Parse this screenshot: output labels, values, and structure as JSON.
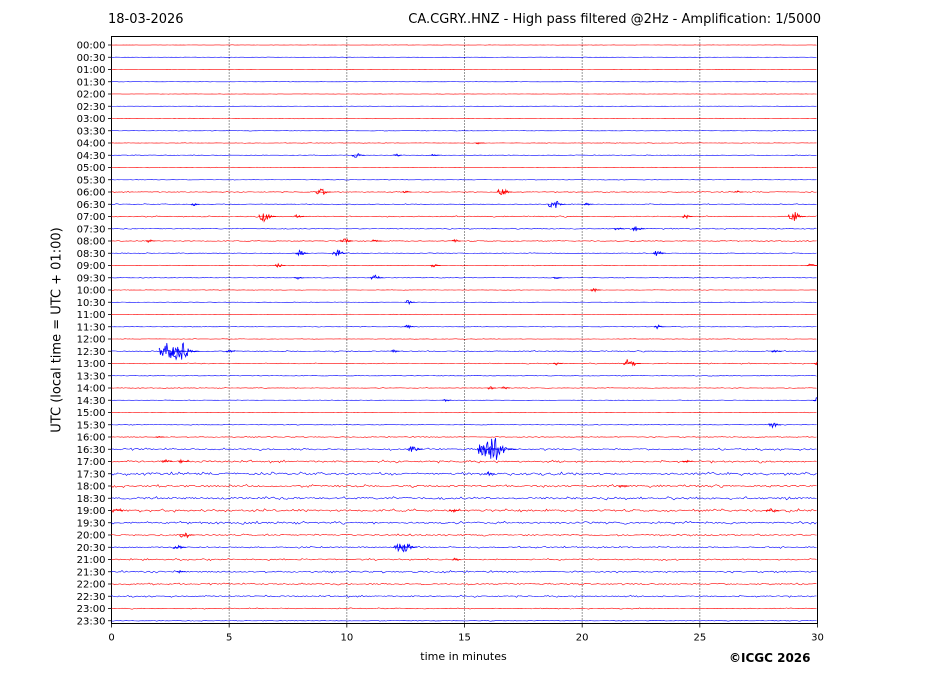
{
  "header": {
    "date": "18-03-2026",
    "title": "CA.CGRY..HNZ - High pass filtered @2Hz - Amplification: 1/5000"
  },
  "footer": {
    "copyright": "©ICGC 2026"
  },
  "chart_data": {
    "type": "line",
    "title": "CA.CGRY..HNZ - High pass filtered @2Hz - Amplification: 1/5000",
    "xlabel": "time in minutes",
    "ylabel": "UTC (local time = UTC + 01:00)",
    "xlim": [
      0,
      30
    ],
    "x_ticks": [
      0,
      5,
      10,
      15,
      20,
      25,
      30
    ],
    "x_tick_labels": [
      "0",
      "5",
      "10",
      "15",
      "20",
      "25",
      "30"
    ],
    "grid": "vertical dotted lines at x = 5, 10, 15, 20, 25",
    "trace_colors": [
      "#ff0000",
      "#0000ff"
    ],
    "rows": [
      "00:00",
      "00:30",
      "01:00",
      "01:30",
      "02:00",
      "02:30",
      "03:00",
      "03:30",
      "04:00",
      "04:30",
      "05:00",
      "05:30",
      "06:00",
      "06:30",
      "07:00",
      "07:30",
      "08:00",
      "08:30",
      "09:00",
      "09:30",
      "10:00",
      "10:30",
      "11:00",
      "11:30",
      "12:00",
      "12:30",
      "13:00",
      "13:30",
      "14:00",
      "14:30",
      "15:00",
      "15:30",
      "16:00",
      "16:30",
      "17:00",
      "17:30",
      "18:00",
      "18:30",
      "19:00",
      "19:30",
      "20:00",
      "20:30",
      "21:00",
      "21:30",
      "22:00",
      "22:30",
      "23:00",
      "23:30"
    ],
    "noise_level": [
      0.1,
      0.1,
      0.1,
      0.1,
      0.1,
      0.1,
      0.15,
      0.15,
      0.15,
      0.2,
      0.15,
      0.15,
      0.3,
      0.25,
      0.35,
      0.3,
      0.3,
      0.25,
      0.2,
      0.2,
      0.15,
      0.15,
      0.15,
      0.15,
      0.15,
      0.35,
      0.3,
      0.2,
      0.2,
      0.15,
      0.15,
      0.2,
      0.3,
      0.6,
      0.7,
      0.8,
      0.7,
      0.8,
      0.8,
      0.7,
      0.5,
      0.5,
      0.5,
      0.6,
      0.5,
      0.5,
      0.3,
      0.2
    ],
    "events": [
      {
        "row": "04:00",
        "minute": 15.6,
        "amplitude": 1.2
      },
      {
        "row": "04:30",
        "minute": 10.4,
        "amplitude": 3
      },
      {
        "row": "04:30",
        "minute": 12.1,
        "amplitude": 1.5
      },
      {
        "row": "04:30",
        "minute": 13.7,
        "amplitude": 1.2
      },
      {
        "row": "06:00",
        "minute": 8.9,
        "amplitude": 4
      },
      {
        "row": "06:00",
        "minute": 16.6,
        "amplitude": 4
      },
      {
        "row": "06:00",
        "minute": 12.5,
        "amplitude": 1.2
      },
      {
        "row": "06:00",
        "minute": 26.6,
        "amplitude": 1.2
      },
      {
        "row": "06:30",
        "minute": 3.5,
        "amplitude": 1.5
      },
      {
        "row": "06:30",
        "minute": 18.8,
        "amplitude": 5
      },
      {
        "row": "06:30",
        "minute": 20.2,
        "amplitude": 1.2
      },
      {
        "row": "07:00",
        "minute": 6.5,
        "amplitude": 5
      },
      {
        "row": "07:00",
        "minute": 7.9,
        "amplitude": 2
      },
      {
        "row": "07:00",
        "minute": 24.4,
        "amplitude": 2
      },
      {
        "row": "07:00",
        "minute": 29.0,
        "amplitude": 5
      },
      {
        "row": "07:30",
        "minute": 21.5,
        "amplitude": 2
      },
      {
        "row": "07:30",
        "minute": 22.3,
        "amplitude": 3
      },
      {
        "row": "08:00",
        "minute": 9.9,
        "amplitude": 3
      },
      {
        "row": "08:00",
        "minute": 11.2,
        "amplitude": 2
      },
      {
        "row": "08:00",
        "minute": 14.6,
        "amplitude": 1.5
      },
      {
        "row": "08:00",
        "minute": 1.6,
        "amplitude": 1.5
      },
      {
        "row": "08:30",
        "minute": 8.0,
        "amplitude": 3
      },
      {
        "row": "08:30",
        "minute": 9.6,
        "amplitude": 4
      },
      {
        "row": "08:30",
        "minute": 23.2,
        "amplitude": 3
      },
      {
        "row": "09:00",
        "minute": 7.1,
        "amplitude": 2
      },
      {
        "row": "09:00",
        "minute": 13.7,
        "amplitude": 2
      },
      {
        "row": "09:00",
        "minute": 29.7,
        "amplitude": 2
      },
      {
        "row": "09:30",
        "minute": 7.9,
        "amplitude": 2
      },
      {
        "row": "09:30",
        "minute": 11.2,
        "amplitude": 3
      },
      {
        "row": "09:30",
        "minute": 18.9,
        "amplitude": 1.2
      },
      {
        "row": "10:00",
        "minute": 20.5,
        "amplitude": 2
      },
      {
        "row": "10:30",
        "minute": 12.6,
        "amplitude": 2
      },
      {
        "row": "11:30",
        "minute": 12.6,
        "amplitude": 2
      },
      {
        "row": "11:30",
        "minute": 23.2,
        "amplitude": 2
      },
      {
        "row": "12:30",
        "minute": 2.4,
        "amplitude": 9
      },
      {
        "row": "12:30",
        "minute": 2.9,
        "amplitude": 10
      },
      {
        "row": "12:30",
        "minute": 5.0,
        "amplitude": 1.5
      },
      {
        "row": "12:30",
        "minute": 12.0,
        "amplitude": 1.5
      },
      {
        "row": "12:30",
        "minute": 28.2,
        "amplitude": 2
      },
      {
        "row": "13:00",
        "minute": 22.0,
        "amplitude": 5
      },
      {
        "row": "13:00",
        "minute": 18.9,
        "amplitude": 1.5
      },
      {
        "row": "13:00",
        "minute": 30.0,
        "amplitude": 2
      },
      {
        "row": "14:00",
        "minute": 16.1,
        "amplitude": 1.5
      },
      {
        "row": "14:00",
        "minute": 16.7,
        "amplitude": 1.5
      },
      {
        "row": "14:30",
        "minute": 14.2,
        "amplitude": 1.5
      },
      {
        "row": "14:30",
        "minute": 30.0,
        "amplitude": 3
      },
      {
        "row": "15:30",
        "minute": 28.1,
        "amplitude": 3
      },
      {
        "row": "16:00",
        "minute": 2.0,
        "amplitude": 1.2
      },
      {
        "row": "16:30",
        "minute": 12.8,
        "amplitude": 4
      },
      {
        "row": "16:30",
        "minute": 15.9,
        "amplitude": 6
      },
      {
        "row": "16:30",
        "minute": 16.1,
        "amplitude": 14
      },
      {
        "row": "17:00",
        "minute": 2.3,
        "amplitude": 2
      },
      {
        "row": "17:00",
        "minute": 3.0,
        "amplitude": 2
      },
      {
        "row": "17:00",
        "minute": 24.4,
        "amplitude": 2
      },
      {
        "row": "17:30",
        "minute": 16.0,
        "amplitude": 2
      },
      {
        "row": "18:00",
        "minute": 21.7,
        "amplitude": 2
      },
      {
        "row": "19:00",
        "minute": 0.2,
        "amplitude": 2
      },
      {
        "row": "19:00",
        "minute": 14.5,
        "amplitude": 2
      },
      {
        "row": "19:00",
        "minute": 28.0,
        "amplitude": 3
      },
      {
        "row": "20:00",
        "minute": 3.1,
        "amplitude": 4
      },
      {
        "row": "20:30",
        "minute": 2.8,
        "amplitude": 3
      },
      {
        "row": "20:30",
        "minute": 12.2,
        "amplitude": 4
      },
      {
        "row": "20:30",
        "minute": 12.5,
        "amplitude": 5
      },
      {
        "row": "21:00",
        "minute": 14.6,
        "amplitude": 1.5
      },
      {
        "row": "21:30",
        "minute": 2.9,
        "amplitude": 1.2
      }
    ]
  }
}
